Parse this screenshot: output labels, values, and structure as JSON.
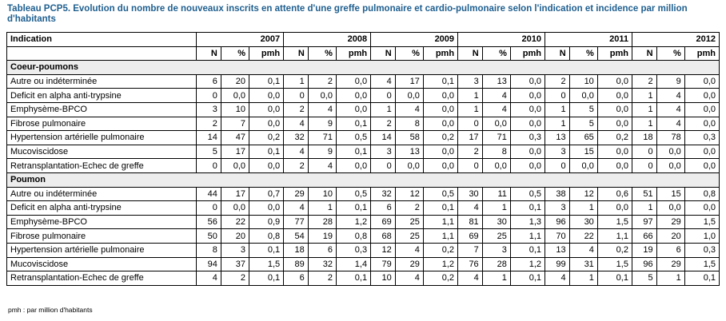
{
  "title": "Tableau PCP5. Evolution du nombre de nouveaux inscrits en attente d'une greffe pulmonaire et cardio-pulmonaire selon l'indication et incidence par million d'habitants",
  "header": {
    "indication_label": "Indication",
    "years": [
      "2007",
      "2008",
      "2009",
      "2010",
      "2011",
      "2012"
    ],
    "sub_labels": [
      "N",
      "%",
      "pmh"
    ]
  },
  "sections": [
    {
      "name": "Coeur-poumons",
      "rows": [
        {
          "label": "Autre ou indéterminée",
          "values": [
            "6",
            "20",
            "0,1",
            "1",
            "2",
            "0,0",
            "4",
            "17",
            "0,1",
            "3",
            "13",
            "0,0",
            "2",
            "10",
            "0,0",
            "2",
            "9",
            "0,0"
          ]
        },
        {
          "label": "Deficit en alpha anti-trypsine",
          "values": [
            "0",
            "0,0",
            "0,0",
            "0",
            "0,0",
            "0,0",
            "0",
            "0,0",
            "0,0",
            "1",
            "4",
            "0,0",
            "0",
            "0,0",
            "0,0",
            "1",
            "4",
            "0,0"
          ]
        },
        {
          "label": "Emphysème-BPCO",
          "values": [
            "3",
            "10",
            "0,0",
            "2",
            "4",
            "0,0",
            "1",
            "4",
            "0,0",
            "1",
            "4",
            "0,0",
            "1",
            "5",
            "0,0",
            "1",
            "4",
            "0,0"
          ]
        },
        {
          "label": "Fibrose pulmonaire",
          "values": [
            "2",
            "7",
            "0,0",
            "4",
            "9",
            "0,1",
            "2",
            "8",
            "0,0",
            "0",
            "0,0",
            "0,0",
            "1",
            "5",
            "0,0",
            "1",
            "4",
            "0,0"
          ]
        },
        {
          "label": "Hypertension artérielle pulmonaire",
          "values": [
            "14",
            "47",
            "0,2",
            "32",
            "71",
            "0,5",
            "14",
            "58",
            "0,2",
            "17",
            "71",
            "0,3",
            "13",
            "65",
            "0,2",
            "18",
            "78",
            "0,3"
          ]
        },
        {
          "label": "Mucoviscidose",
          "values": [
            "5",
            "17",
            "0,1",
            "4",
            "9",
            "0,1",
            "3",
            "13",
            "0,0",
            "2",
            "8",
            "0,0",
            "3",
            "15",
            "0,0",
            "0",
            "0,0",
            "0,0"
          ]
        },
        {
          "label": "Retransplantation-Echec de greffe",
          "values": [
            "0",
            "0,0",
            "0,0",
            "2",
            "4",
            "0,0",
            "0",
            "0,0",
            "0,0",
            "0",
            "0,0",
            "0,0",
            "0",
            "0,0",
            "0,0",
            "0",
            "0,0",
            "0,0"
          ]
        }
      ]
    },
    {
      "name": "Poumon",
      "rows": [
        {
          "label": "Autre ou indéterminée",
          "values": [
            "44",
            "17",
            "0,7",
            "29",
            "10",
            "0,5",
            "32",
            "12",
            "0,5",
            "30",
            "11",
            "0,5",
            "38",
            "12",
            "0,6",
            "51",
            "15",
            "0,8"
          ]
        },
        {
          "label": "Deficit en alpha anti-trypsine",
          "values": [
            "0",
            "0,0",
            "0,0",
            "4",
            "1",
            "0,1",
            "6",
            "2",
            "0,1",
            "4",
            "1",
            "0,1",
            "3",
            "1",
            "0,0",
            "1",
            "0,0",
            "0,0"
          ]
        },
        {
          "label": "Emphysème-BPCO",
          "values": [
            "56",
            "22",
            "0,9",
            "77",
            "28",
            "1,2",
            "69",
            "25",
            "1,1",
            "81",
            "30",
            "1,3",
            "96",
            "30",
            "1,5",
            "97",
            "29",
            "1,5"
          ]
        },
        {
          "label": "Fibrose pulmonaire",
          "values": [
            "50",
            "20",
            "0,8",
            "54",
            "19",
            "0,8",
            "68",
            "25",
            "1,1",
            "69",
            "25",
            "1,1",
            "70",
            "22",
            "1,1",
            "66",
            "20",
            "1,0"
          ]
        },
        {
          "label": "Hypertension artérielle pulmonaire",
          "values": [
            "8",
            "3",
            "0,1",
            "18",
            "6",
            "0,3",
            "12",
            "4",
            "0,2",
            "7",
            "3",
            "0,1",
            "13",
            "4",
            "0,2",
            "19",
            "6",
            "0,3"
          ]
        },
        {
          "label": "Mucoviscidose",
          "values": [
            "94",
            "37",
            "1,5",
            "89",
            "32",
            "1,4",
            "79",
            "29",
            "1,2",
            "76",
            "28",
            "1,2",
            "99",
            "31",
            "1,5",
            "96",
            "29",
            "1,5"
          ]
        },
        {
          "label": "Retransplantation-Echec de greffe",
          "values": [
            "4",
            "2",
            "0,1",
            "6",
            "2",
            "0,1",
            "10",
            "4",
            "0,2",
            "4",
            "1",
            "0,1",
            "4",
            "1",
            "0,1",
            "5",
            "1",
            "0,1"
          ]
        }
      ]
    }
  ],
  "footnote": "pmh : par million d'habitants",
  "colors": {
    "title": "#1f5f8f",
    "section_bg": "#ededed"
  }
}
